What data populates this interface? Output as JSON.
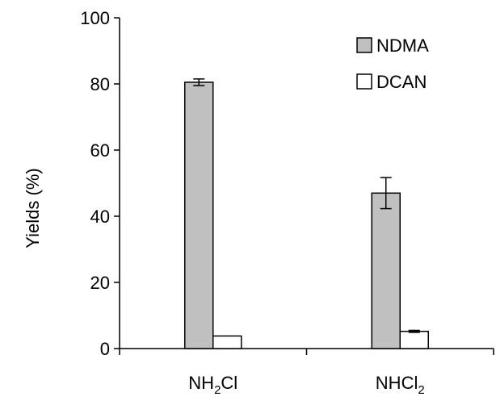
{
  "chart_data": {
    "type": "bar",
    "title": "",
    "xlabel": "",
    "ylabel": "Yields (%)",
    "ylim": [
      0,
      100
    ],
    "yticks": [
      0,
      20,
      40,
      60,
      80,
      100
    ],
    "grid": false,
    "legend_position": "top-right",
    "categories": [
      {
        "base": "NH",
        "sub": "2",
        "tail": "Cl"
      },
      {
        "base": "NHCl",
        "sub": "2",
        "tail": ""
      }
    ],
    "series": [
      {
        "name": "NDMA",
        "color": "#c0c0c0",
        "values": [
          80.5,
          47
        ],
        "error": [
          1.0,
          4.7
        ]
      },
      {
        "name": "DCAN",
        "color": "#ffffff",
        "values": [
          3.8,
          5.2
        ],
        "error": [
          0,
          0.3
        ]
      }
    ]
  }
}
